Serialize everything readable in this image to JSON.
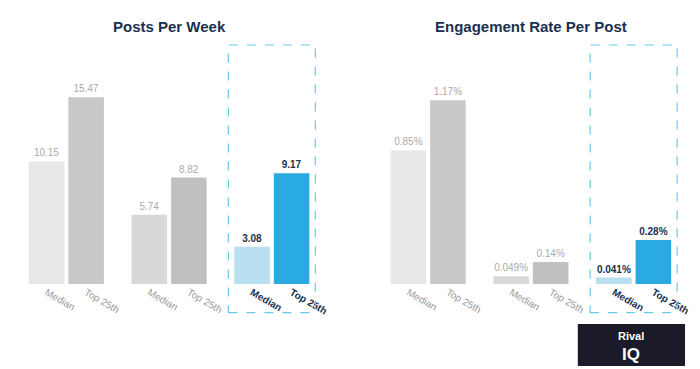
{
  "chart_data": [
    {
      "type": "bar",
      "title": "Posts Per Week",
      "categories": [
        "Median",
        "Top 25th",
        "Median",
        "Top 25th",
        "Median",
        "Top 25th"
      ],
      "values": [
        10.15,
        15.47,
        5.74,
        8.82,
        3.08,
        9.17
      ],
      "colors": [
        "#e8e8e8",
        "#c8c8c8",
        "#d8d8d8",
        "#c0c0c0",
        "#b8dff0",
        "#29aae1"
      ],
      "ylim": [
        0,
        19.8016
      ],
      "data_labels": true,
      "tick_labels": "x",
      "grid": false
    },
    {
      "type": "bar",
      "title": "Engagement Rate Per Post",
      "categories": [
        "Median",
        "Top 25th",
        "Median",
        "Top 25th",
        "Median",
        "Top 25th"
      ],
      "values": [
        0.0085,
        0.0117,
        0.00049,
        0.0014,
        0.00041,
        0.0028
      ],
      "value_labels": [
        "0.85%",
        "1.17%",
        "0.049%",
        "0.14%",
        "0.041%",
        "0.28%"
      ],
      "colors": [
        "#e8e8e8",
        "#c8c8c8",
        "#d8d8d8",
        "#c0c0c0",
        "#b8dff0",
        "#29aae1"
      ],
      "ylim": [
        0,
        0.01521
      ],
      "data_labels": true,
      "tick_labels": "x",
      "grid": false,
      "annotations": [
        "Rival",
        "IQ"
      ]
    }
  ]
}
